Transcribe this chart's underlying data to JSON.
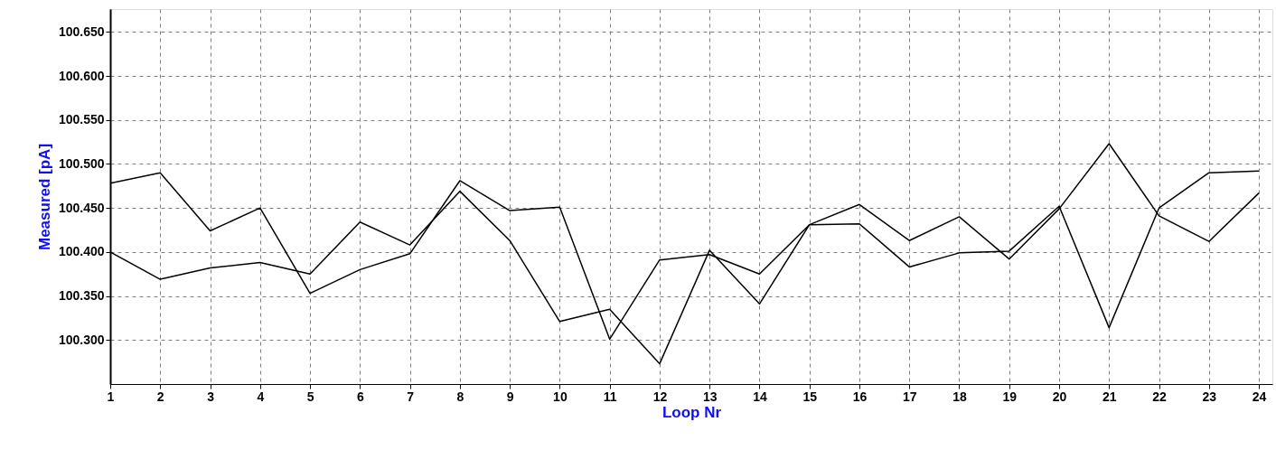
{
  "chart_data": {
    "type": "line",
    "xlabel": "Loop Nr",
    "ylabel": "Measured [pA]",
    "x": [
      1,
      2,
      3,
      4,
      5,
      6,
      7,
      8,
      9,
      10,
      11,
      12,
      13,
      14,
      15,
      16,
      17,
      18,
      19,
      20,
      21,
      22,
      23,
      24
    ],
    "series": [
      {
        "color": "#000000",
        "values": [
          100.478,
          100.49,
          100.424,
          100.45,
          100.353,
          100.38,
          100.398,
          100.481,
          100.447,
          100.451,
          100.301,
          100.391,
          100.397,
          100.375,
          100.431,
          100.432,
          100.383,
          100.399,
          100.401,
          100.452,
          100.314,
          100.45,
          100.49,
          100.492
        ]
      },
      {
        "color": "#000000",
        "values": [
          100.4,
          100.369,
          100.382,
          100.388,
          100.375,
          100.434,
          100.408,
          100.469,
          100.413,
          100.321,
          100.335,
          100.273,
          100.402,
          100.341,
          100.431,
          100.454,
          100.413,
          100.44,
          100.392,
          100.449,
          100.523,
          100.441,
          100.412,
          100.467
        ]
      }
    ],
    "xlim": [
      1,
      24.27
    ],
    "xticks": [
      1,
      2,
      3,
      4,
      5,
      6,
      7,
      8,
      9,
      10,
      11,
      12,
      13,
      14,
      15,
      16,
      17,
      18,
      19,
      20,
      21,
      22,
      23,
      24
    ],
    "ylim": [
      100.25,
      100.676
    ],
    "yticks": [
      {
        "value": 100.3,
        "label": "100.300"
      },
      {
        "value": 100.35,
        "label": "100.350"
      },
      {
        "value": 100.4,
        "label": "100.400"
      },
      {
        "value": 100.45,
        "label": "100.450"
      },
      {
        "value": 100.5,
        "label": "100.500"
      },
      {
        "value": 100.55,
        "label": "100.550"
      },
      {
        "value": 100.6,
        "label": "100.600"
      },
      {
        "value": 100.65,
        "label": "100.650"
      }
    ],
    "grid": true,
    "marker": "none",
    "line_style": "solid"
  }
}
